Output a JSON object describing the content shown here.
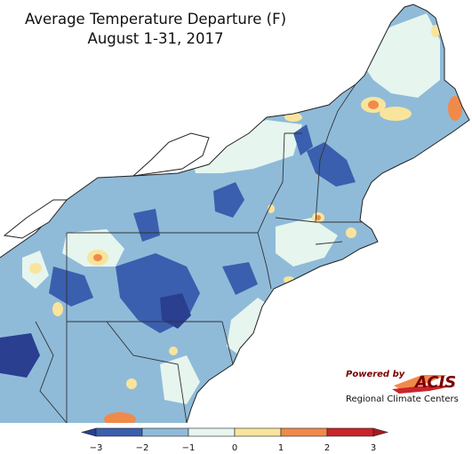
{
  "title": {
    "line1": "Average Temperature Departure (F)",
    "line2": "August 1-31, 2017"
  },
  "legend": {
    "ticks": [
      "−3",
      "−2",
      "−1",
      "0",
      "1",
      "2",
      "3"
    ],
    "colors": [
      "#3a5fae",
      "#8fbbd9",
      "#e6f5ee",
      "#f9e49c",
      "#f08a4b",
      "#c9252b"
    ],
    "arrow_left_color": "#2a3f8f",
    "arrow_right_color": "#a81a22"
  },
  "map_colors": {
    "ocean": "#ffffff",
    "base_departure": "#8fbbd9",
    "strong_cool": "#3a5fae",
    "very_strong_cool": "#2a3f8f",
    "neutral": "#e6f5ee",
    "slight_warm": "#f9e49c",
    "warm": "#f08a4b",
    "boundary": "#333333"
  },
  "logo": {
    "powered_by": "Powered by",
    "brand": "ACIS",
    "subtitle": "Regional Climate Centers",
    "color": "#7a0000"
  }
}
